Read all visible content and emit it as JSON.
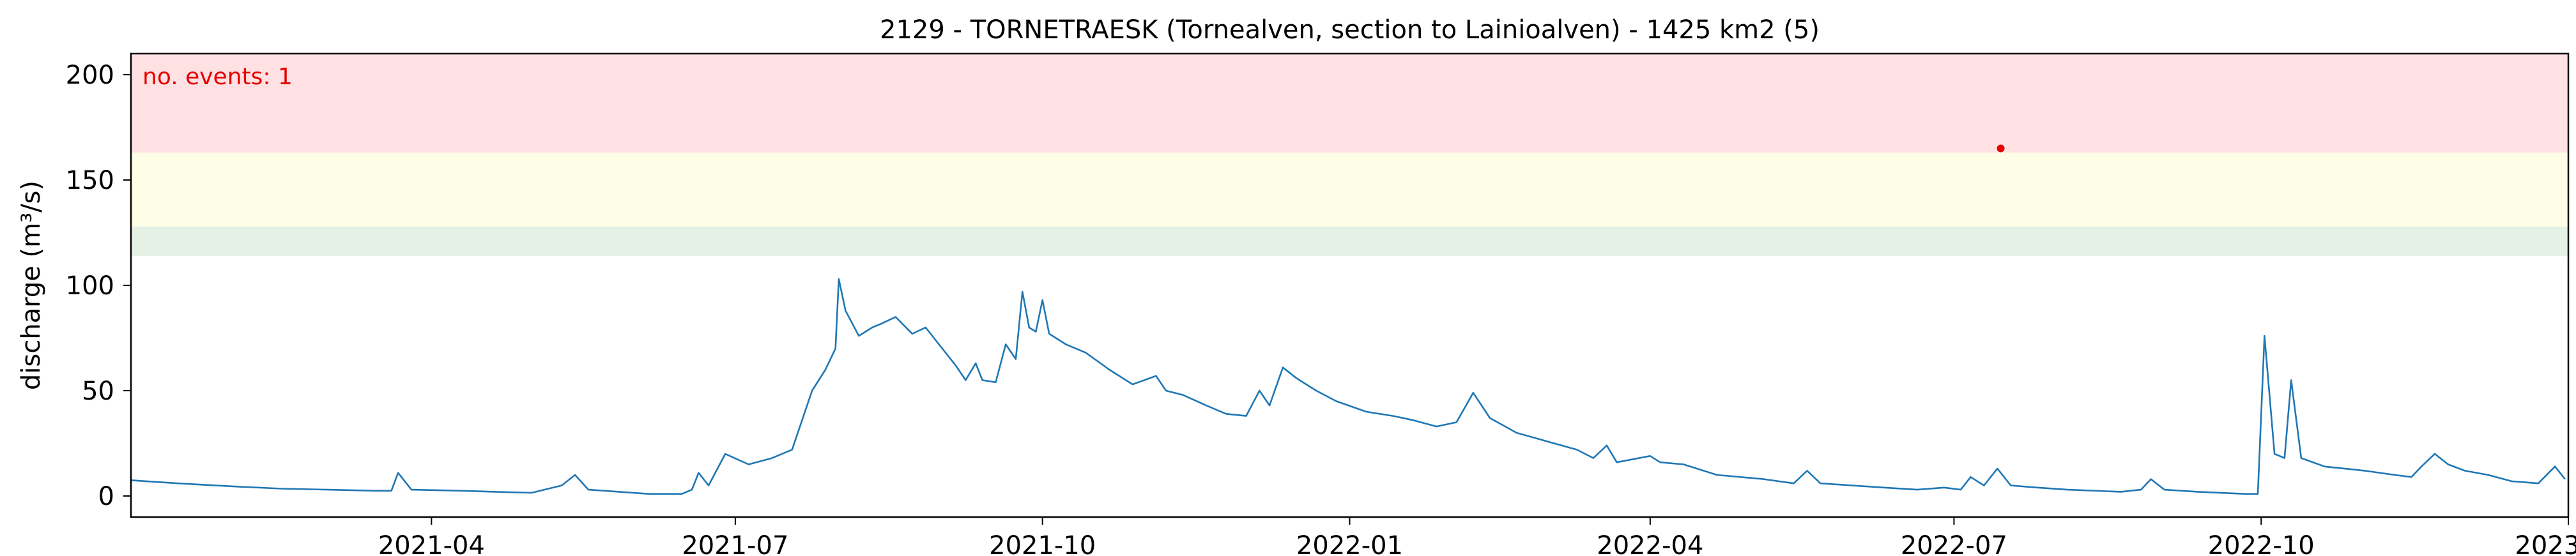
{
  "chart_data": {
    "type": "line",
    "title": "2129 - TORNETRAESK (Tornealven, section to Lainioalven) - 1425 km2 (5)",
    "xlabel": "",
    "ylabel": "discharge (m³/s)",
    "xlim": [
      "2021-01-01",
      "2023-01-01"
    ],
    "ylim": [
      -10,
      210
    ],
    "x_ticks": [
      "2021-04",
      "2021-07",
      "2021-10",
      "2022-01",
      "2022-04",
      "2022-07",
      "2022-10",
      "2023-01"
    ],
    "y_ticks": [
      0,
      50,
      100,
      150,
      200
    ],
    "grid": false,
    "annotation": {
      "text": "no. events: 1",
      "color": "#e60000"
    },
    "threshold_bands": [
      {
        "lower": 163,
        "upper": 210,
        "color": "#ffe1e3"
      },
      {
        "lower": 128,
        "upper": 163,
        "color": "#fefee6"
      },
      {
        "lower": 114,
        "upper": 128,
        "color": "#e4f1e4"
      }
    ],
    "events": [
      {
        "x": "2022-07-15",
        "y": 165,
        "color": "#e60000"
      }
    ],
    "series": [
      {
        "color": "#1f77b4",
        "points": [
          [
            "2021-01-01",
            7.5
          ],
          [
            "2021-01-15",
            6
          ],
          [
            "2021-02-01",
            4.5
          ],
          [
            "2021-02-15",
            3.5
          ],
          [
            "2021-03-01",
            3
          ],
          [
            "2021-03-15",
            2.5
          ],
          [
            "2021-03-20",
            2.5
          ],
          [
            "2021-03-22",
            11
          ],
          [
            "2021-03-26",
            3
          ],
          [
            "2021-04-10",
            2.5
          ],
          [
            "2021-04-20",
            2
          ],
          [
            "2021-05-01",
            1.5
          ],
          [
            "2021-05-10",
            5
          ],
          [
            "2021-05-14",
            10
          ],
          [
            "2021-05-18",
            3
          ],
          [
            "2021-06-05",
            1
          ],
          [
            "2021-06-15",
            1
          ],
          [
            "2021-06-18",
            3
          ],
          [
            "2021-06-20",
            11
          ],
          [
            "2021-06-23",
            5
          ],
          [
            "2021-06-28",
            20
          ],
          [
            "2021-07-05",
            15
          ],
          [
            "2021-07-12",
            18
          ],
          [
            "2021-07-18",
            22
          ],
          [
            "2021-07-24",
            50
          ],
          [
            "2021-07-28",
            60
          ],
          [
            "2021-07-31",
            70
          ],
          [
            "2021-08-01",
            103
          ],
          [
            "2021-08-03",
            88
          ],
          [
            "2021-08-07",
            76
          ],
          [
            "2021-08-11",
            80
          ],
          [
            "2021-08-14",
            82
          ],
          [
            "2021-08-18",
            85
          ],
          [
            "2021-08-23",
            77
          ],
          [
            "2021-08-27",
            80
          ],
          [
            "2021-09-01",
            70
          ],
          [
            "2021-09-05",
            62
          ],
          [
            "2021-09-08",
            55
          ],
          [
            "2021-09-11",
            63
          ],
          [
            "2021-09-13",
            55
          ],
          [
            "2021-09-17",
            54
          ],
          [
            "2021-09-20",
            72
          ],
          [
            "2021-09-23",
            65
          ],
          [
            "2021-09-25",
            97
          ],
          [
            "2021-09-27",
            80
          ],
          [
            "2021-09-29",
            78
          ],
          [
            "2021-10-01",
            93
          ],
          [
            "2021-10-03",
            77
          ],
          [
            "2021-10-08",
            72
          ],
          [
            "2021-10-14",
            68
          ],
          [
            "2021-10-21",
            60
          ],
          [
            "2021-10-28",
            53
          ],
          [
            "2021-11-04",
            57
          ],
          [
            "2021-11-07",
            50
          ],
          [
            "2021-11-12",
            48
          ],
          [
            "2021-11-19",
            43
          ],
          [
            "2021-11-25",
            39
          ],
          [
            "2021-12-01",
            38
          ],
          [
            "2021-12-05",
            50
          ],
          [
            "2021-12-08",
            43
          ],
          [
            "2021-12-12",
            61
          ],
          [
            "2021-12-16",
            56
          ],
          [
            "2021-12-22",
            50
          ],
          [
            "2021-12-28",
            45
          ],
          [
            "2022-01-06",
            40
          ],
          [
            "2022-01-14",
            38
          ],
          [
            "2022-01-20",
            36
          ],
          [
            "2022-01-27",
            33
          ],
          [
            "2022-02-02",
            35
          ],
          [
            "2022-02-07",
            49
          ],
          [
            "2022-02-12",
            37
          ],
          [
            "2022-02-20",
            30
          ],
          [
            "2022-03-01",
            26
          ],
          [
            "2022-03-10",
            22
          ],
          [
            "2022-03-15",
            18
          ],
          [
            "2022-03-19",
            24
          ],
          [
            "2022-03-22",
            16
          ],
          [
            "2022-04-01",
            19
          ],
          [
            "2022-04-04",
            16
          ],
          [
            "2022-04-11",
            15
          ],
          [
            "2022-04-21",
            10
          ],
          [
            "2022-05-05",
            8
          ],
          [
            "2022-05-14",
            6
          ],
          [
            "2022-05-18",
            12
          ],
          [
            "2022-05-22",
            6
          ],
          [
            "2022-06-10",
            4
          ],
          [
            "2022-06-20",
            3
          ],
          [
            "2022-06-28",
            4
          ],
          [
            "2022-07-03",
            3
          ],
          [
            "2022-07-06",
            9
          ],
          [
            "2022-07-10",
            5
          ],
          [
            "2022-07-14",
            13
          ],
          [
            "2022-07-18",
            5
          ],
          [
            "2022-07-26",
            4
          ],
          [
            "2022-08-04",
            3
          ],
          [
            "2022-08-20",
            2
          ],
          [
            "2022-08-26",
            3
          ],
          [
            "2022-08-29",
            8
          ],
          [
            "2022-09-02",
            3
          ],
          [
            "2022-09-12",
            2
          ],
          [
            "2022-09-26",
            1
          ],
          [
            "2022-09-30",
            1
          ],
          [
            "2022-10-02",
            76
          ],
          [
            "2022-10-05",
            20
          ],
          [
            "2022-10-08",
            18
          ],
          [
            "2022-10-10",
            55
          ],
          [
            "2022-10-13",
            18
          ],
          [
            "2022-10-20",
            14
          ],
          [
            "2022-11-01",
            12
          ],
          [
            "2022-11-10",
            10
          ],
          [
            "2022-11-15",
            9
          ],
          [
            "2022-11-18",
            14
          ],
          [
            "2022-11-22",
            20
          ],
          [
            "2022-11-26",
            15
          ],
          [
            "2022-12-01",
            12
          ],
          [
            "2022-12-08",
            10
          ],
          [
            "2022-12-15",
            7
          ],
          [
            "2022-12-23",
            6
          ],
          [
            "2022-12-28",
            14
          ],
          [
            "2022-12-31",
            8
          ]
        ]
      }
    ]
  }
}
